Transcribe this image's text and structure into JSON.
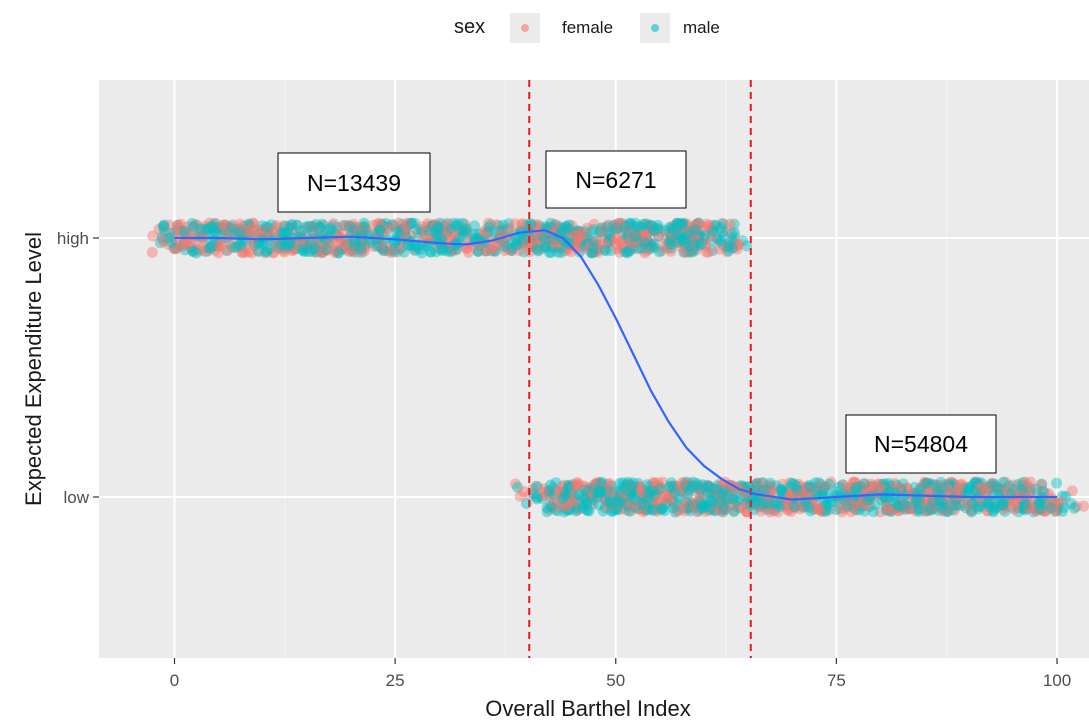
{
  "chart_data": {
    "type": "scatter",
    "title": "",
    "xlabel": "Overall Barthel Index",
    "ylabel": "Expected Expenditure Level",
    "xlim": [
      -5,
      105
    ],
    "x_ticks": [
      0,
      25,
      50,
      75,
      100
    ],
    "y_categories": [
      "low",
      "high"
    ],
    "grid": true,
    "legend": {
      "title": "sex",
      "position": "top",
      "entries": [
        {
          "label": "female",
          "color": "#F8766D"
        },
        {
          "label": "male",
          "color": "#00BFC4"
        }
      ]
    },
    "series": [
      {
        "name": "female",
        "color": "#F8766D",
        "groups": [
          {
            "category": "high",
            "x_range": [
              0,
              62
            ]
          },
          {
            "category": "low",
            "x_range": [
              42,
              100
            ]
          }
        ]
      },
      {
        "name": "male",
        "color": "#00BFC4",
        "groups": [
          {
            "category": "high",
            "x_range": [
              0,
              63
            ]
          },
          {
            "category": "low",
            "x_range": [
              42,
              100
            ]
          }
        ]
      }
    ],
    "smooth_line": {
      "color": "#3366FF",
      "points": [
        [
          0,
          1.0
        ],
        [
          5,
          1.0
        ],
        [
          10,
          0.995
        ],
        [
          15,
          1.0
        ],
        [
          20,
          1.005
        ],
        [
          25,
          0.995
        ],
        [
          30,
          0.98
        ],
        [
          33,
          0.975
        ],
        [
          36,
          0.99
        ],
        [
          39,
          1.02
        ],
        [
          42,
          1.03
        ],
        [
          44,
          1.0
        ],
        [
          46,
          0.93
        ],
        [
          48,
          0.82
        ],
        [
          50,
          0.69
        ],
        [
          52,
          0.55
        ],
        [
          54,
          0.41
        ],
        [
          56,
          0.29
        ],
        [
          58,
          0.19
        ],
        [
          60,
          0.12
        ],
        [
          62,
          0.07
        ],
        [
          64,
          0.03
        ],
        [
          66,
          0.01
        ],
        [
          68,
          0.0
        ],
        [
          70,
          -0.01
        ],
        [
          75,
          0.0
        ],
        [
          80,
          0.01
        ],
        [
          85,
          0.005
        ],
        [
          90,
          0.0
        ],
        [
          95,
          0.0
        ],
        [
          100,
          0.0
        ]
      ]
    },
    "vlines": [
      {
        "x": 40.2,
        "color": "#E41A1C",
        "style": "dashed"
      },
      {
        "x": 65.3,
        "color": "#E41A1C",
        "style": "dashed"
      }
    ],
    "annotations": [
      {
        "text": "N=13439"
      },
      {
        "text": "N=6271"
      },
      {
        "text": "N=54804"
      }
    ]
  }
}
